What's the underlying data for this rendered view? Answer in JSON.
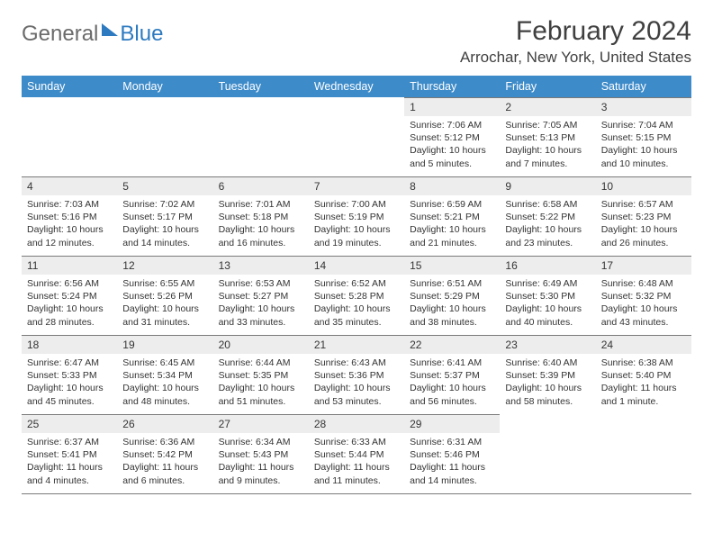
{
  "brand": {
    "part1": "General",
    "part2": "Blue"
  },
  "title": "February 2024",
  "location": "Arrochar, New York, United States",
  "weekdays": [
    "Sunday",
    "Monday",
    "Tuesday",
    "Wednesday",
    "Thursday",
    "Friday",
    "Saturday"
  ],
  "colors": {
    "header_bg": "#3d8bc9",
    "header_text": "#ffffff",
    "daynum_bg": "#ededed",
    "border": "#7a7a7a",
    "text": "#333333",
    "brand_gray": "#6b6b6b",
    "brand_blue": "#2d7ac0"
  },
  "typography": {
    "title_fontsize": 30,
    "location_fontsize": 17,
    "weekday_fontsize": 12.5,
    "daynum_fontsize": 12,
    "content_fontsize": 10.5
  },
  "layout": {
    "start_weekday_index": 4,
    "days_in_month": 29,
    "rows": 5
  },
  "days": [
    {
      "n": 1,
      "sunrise": "7:06 AM",
      "sunset": "5:12 PM",
      "daylight": "10 hours and 5 minutes."
    },
    {
      "n": 2,
      "sunrise": "7:05 AM",
      "sunset": "5:13 PM",
      "daylight": "10 hours and 7 minutes."
    },
    {
      "n": 3,
      "sunrise": "7:04 AM",
      "sunset": "5:15 PM",
      "daylight": "10 hours and 10 minutes."
    },
    {
      "n": 4,
      "sunrise": "7:03 AM",
      "sunset": "5:16 PM",
      "daylight": "10 hours and 12 minutes."
    },
    {
      "n": 5,
      "sunrise": "7:02 AM",
      "sunset": "5:17 PM",
      "daylight": "10 hours and 14 minutes."
    },
    {
      "n": 6,
      "sunrise": "7:01 AM",
      "sunset": "5:18 PM",
      "daylight": "10 hours and 16 minutes."
    },
    {
      "n": 7,
      "sunrise": "7:00 AM",
      "sunset": "5:19 PM",
      "daylight": "10 hours and 19 minutes."
    },
    {
      "n": 8,
      "sunrise": "6:59 AM",
      "sunset": "5:21 PM",
      "daylight": "10 hours and 21 minutes."
    },
    {
      "n": 9,
      "sunrise": "6:58 AM",
      "sunset": "5:22 PM",
      "daylight": "10 hours and 23 minutes."
    },
    {
      "n": 10,
      "sunrise": "6:57 AM",
      "sunset": "5:23 PM",
      "daylight": "10 hours and 26 minutes."
    },
    {
      "n": 11,
      "sunrise": "6:56 AM",
      "sunset": "5:24 PM",
      "daylight": "10 hours and 28 minutes."
    },
    {
      "n": 12,
      "sunrise": "6:55 AM",
      "sunset": "5:26 PM",
      "daylight": "10 hours and 31 minutes."
    },
    {
      "n": 13,
      "sunrise": "6:53 AM",
      "sunset": "5:27 PM",
      "daylight": "10 hours and 33 minutes."
    },
    {
      "n": 14,
      "sunrise": "6:52 AM",
      "sunset": "5:28 PM",
      "daylight": "10 hours and 35 minutes."
    },
    {
      "n": 15,
      "sunrise": "6:51 AM",
      "sunset": "5:29 PM",
      "daylight": "10 hours and 38 minutes."
    },
    {
      "n": 16,
      "sunrise": "6:49 AM",
      "sunset": "5:30 PM",
      "daylight": "10 hours and 40 minutes."
    },
    {
      "n": 17,
      "sunrise": "6:48 AM",
      "sunset": "5:32 PM",
      "daylight": "10 hours and 43 minutes."
    },
    {
      "n": 18,
      "sunrise": "6:47 AM",
      "sunset": "5:33 PM",
      "daylight": "10 hours and 45 minutes."
    },
    {
      "n": 19,
      "sunrise": "6:45 AM",
      "sunset": "5:34 PM",
      "daylight": "10 hours and 48 minutes."
    },
    {
      "n": 20,
      "sunrise": "6:44 AM",
      "sunset": "5:35 PM",
      "daylight": "10 hours and 51 minutes."
    },
    {
      "n": 21,
      "sunrise": "6:43 AM",
      "sunset": "5:36 PM",
      "daylight": "10 hours and 53 minutes."
    },
    {
      "n": 22,
      "sunrise": "6:41 AM",
      "sunset": "5:37 PM",
      "daylight": "10 hours and 56 minutes."
    },
    {
      "n": 23,
      "sunrise": "6:40 AM",
      "sunset": "5:39 PM",
      "daylight": "10 hours and 58 minutes."
    },
    {
      "n": 24,
      "sunrise": "6:38 AM",
      "sunset": "5:40 PM",
      "daylight": "11 hours and 1 minute."
    },
    {
      "n": 25,
      "sunrise": "6:37 AM",
      "sunset": "5:41 PM",
      "daylight": "11 hours and 4 minutes."
    },
    {
      "n": 26,
      "sunrise": "6:36 AM",
      "sunset": "5:42 PM",
      "daylight": "11 hours and 6 minutes."
    },
    {
      "n": 27,
      "sunrise": "6:34 AM",
      "sunset": "5:43 PM",
      "daylight": "11 hours and 9 minutes."
    },
    {
      "n": 28,
      "sunrise": "6:33 AM",
      "sunset": "5:44 PM",
      "daylight": "11 hours and 11 minutes."
    },
    {
      "n": 29,
      "sunrise": "6:31 AM",
      "sunset": "5:46 PM",
      "daylight": "11 hours and 14 minutes."
    }
  ],
  "labels": {
    "sunrise_prefix": "Sunrise: ",
    "sunset_prefix": "Sunset: ",
    "daylight_prefix": "Daylight: "
  }
}
